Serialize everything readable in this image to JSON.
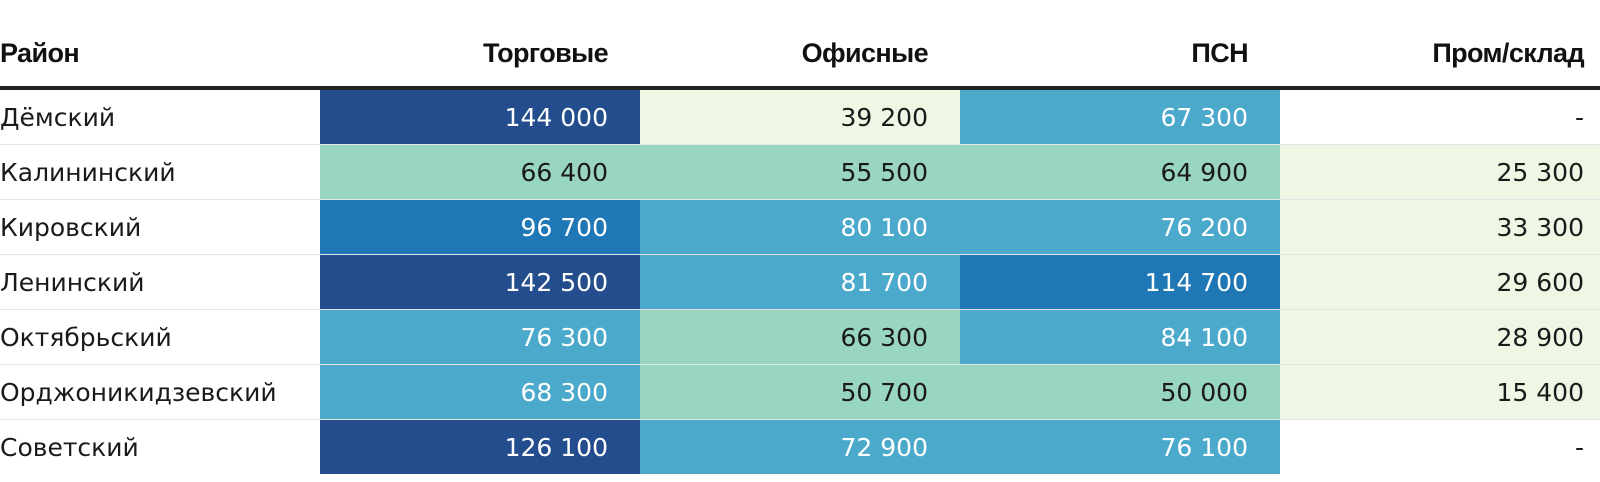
{
  "chart_data": {
    "type": "table",
    "columns": [
      "Район",
      "Торговые",
      "Офисные",
      "ПСН",
      "Пром/склад"
    ],
    "rows": [
      {
        "district": "Дёмский",
        "values": [
          "144 000",
          "39 200",
          "67 300",
          "-"
        ],
        "raw": [
          144000,
          39200,
          67300,
          null
        ]
      },
      {
        "district": "Калининский",
        "values": [
          "66 400",
          "55 500",
          "64 900",
          "25 300"
        ],
        "raw": [
          66400,
          55500,
          64900,
          25300
        ]
      },
      {
        "district": "Кировский",
        "values": [
          "96 700",
          "80 100",
          "76 200",
          "33 300"
        ],
        "raw": [
          96700,
          80100,
          76200,
          33300
        ]
      },
      {
        "district": "Ленинский",
        "values": [
          "142 500",
          "81 700",
          "114 700",
          "29 600"
        ],
        "raw": [
          142500,
          81700,
          114700,
          29600
        ]
      },
      {
        "district": "Октябрьский",
        "values": [
          "76 300",
          "66 300",
          "84 100",
          "28 900"
        ],
        "raw": [
          76300,
          66300,
          84100,
          28900
        ]
      },
      {
        "district": "Орджоникидзевский",
        "values": [
          "68 300",
          "50 700",
          "50 000",
          "15 400"
        ],
        "raw": [
          68300,
          50700,
          50000,
          15400
        ]
      },
      {
        "district": "Советский",
        "values": [
          "126 100",
          "72 900",
          "76 100",
          "-"
        ],
        "raw": [
          126100,
          72900,
          76100,
          null
        ]
      }
    ],
    "color_scale": [
      {
        "min": 0,
        "max": 40000,
        "color": "#eef7e4",
        "text": "#1a1a1a"
      },
      {
        "min": 40000,
        "max": 67000,
        "color": "#99d6c0",
        "text": "#1a1a1a"
      },
      {
        "min": 67000,
        "max": 90000,
        "color": "#4ba9cc",
        "text": "#ffffff"
      },
      {
        "min": 90000,
        "max": 120000,
        "color": "#1f78b5",
        "text": "#ffffff"
      },
      {
        "min": 120000,
        "max": 1000000,
        "color": "#244d8e",
        "text": "#ffffff"
      }
    ],
    "empty_color": "#ffffff"
  }
}
